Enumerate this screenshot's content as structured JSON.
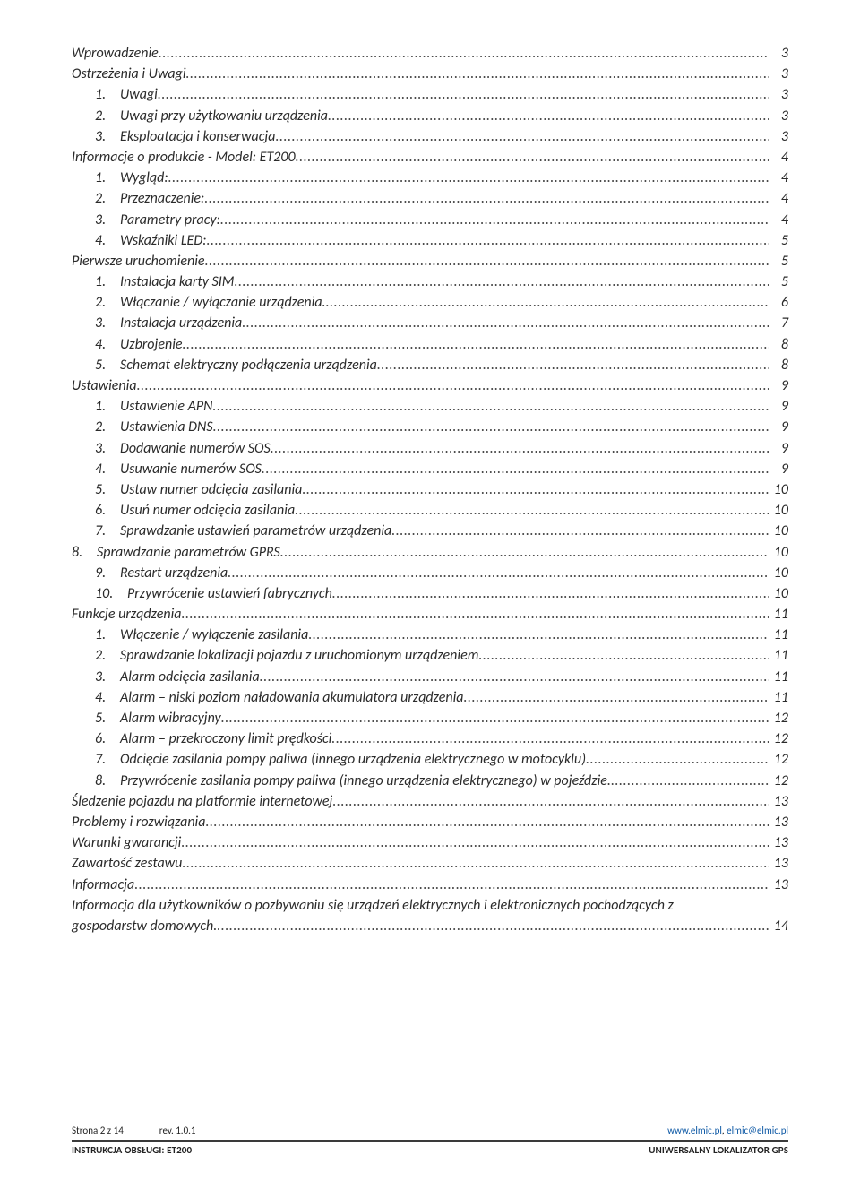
{
  "colors": {
    "text": "#2b2b2b",
    "link": "#0b57a4",
    "hr": "#3a3a3a",
    "background": "#ffffff"
  },
  "typography": {
    "body_font": "Calibri",
    "toc_fontsize_pt": 12,
    "toc_font_style": "italic",
    "footer_fontsize_pt": 8
  },
  "toc": [
    {
      "level": 0,
      "num": "",
      "title": "Wprowadzenie",
      "page": "3"
    },
    {
      "level": 0,
      "num": "",
      "title": "Ostrzeżenia i Uwagi",
      "page": "3"
    },
    {
      "level": 1,
      "num": "1.",
      "title": "Uwagi",
      "page": "3"
    },
    {
      "level": 1,
      "num": "2.",
      "title": "Uwagi przy użytkowaniu urządzenia",
      "page": "3"
    },
    {
      "level": 1,
      "num": "3.",
      "title": "Eksploatacja i konserwacja",
      "page": "3"
    },
    {
      "level": 0,
      "num": "",
      "title": "Informacje o produkcie - Model: ET200",
      "page": "4"
    },
    {
      "level": 1,
      "num": "1.",
      "title": "Wygląd:",
      "page": "4"
    },
    {
      "level": 1,
      "num": "2.",
      "title": "Przeznaczenie:",
      "page": "4"
    },
    {
      "level": 1,
      "num": "3.",
      "title": "Parametry pracy:",
      "page": "4"
    },
    {
      "level": 1,
      "num": "4.",
      "title": "Wskaźniki LED:",
      "page": "5"
    },
    {
      "level": 0,
      "num": "",
      "title": "Pierwsze uruchomienie",
      "page": "5"
    },
    {
      "level": 1,
      "num": "1.",
      "title": "Instalacja karty SIM",
      "page": "5"
    },
    {
      "level": 1,
      "num": "2.",
      "title": "Włączanie / wyłączanie urządzenia.",
      "page": "6"
    },
    {
      "level": 1,
      "num": "3.",
      "title": "Instalacja urządzenia",
      "page": "7"
    },
    {
      "level": 1,
      "num": "4.",
      "title": "Uzbrojenie",
      "page": "8"
    },
    {
      "level": 1,
      "num": "5.",
      "title": "Schemat elektryczny podłączenia urządzenia",
      "page": "8"
    },
    {
      "level": 0,
      "num": "",
      "title": "Ustawienia",
      "page": "9"
    },
    {
      "level": 1,
      "num": "1.",
      "title": "Ustawienie APN",
      "page": "9"
    },
    {
      "level": 1,
      "num": "2.",
      "title": "Ustawienia DNS",
      "page": "9"
    },
    {
      "level": 1,
      "num": "3.",
      "title": "Dodawanie numerów SOS",
      "page": "9"
    },
    {
      "level": 1,
      "num": "4.",
      "title": "Usuwanie numerów SOS",
      "page": "9"
    },
    {
      "level": 1,
      "num": "5.",
      "title": "Ustaw numer odcięcia zasilania",
      "page": "10"
    },
    {
      "level": 1,
      "num": "6.",
      "title": "Usuń numer odcięcia zasilania",
      "page": "10"
    },
    {
      "level": 1,
      "num": "7.",
      "title": "Sprawdzanie ustawień parametrów urządzenia",
      "page": "10"
    },
    {
      "level": 0,
      "num": "8.",
      "title": "Sprawdzanie parametrów GPRS",
      "page": "10"
    },
    {
      "level": 1,
      "num": "9.",
      "title": "Restart urządzenia",
      "page": "10"
    },
    {
      "level": 2,
      "num": "10.",
      "title": "Przywrócenie ustawień fabrycznych",
      "page": "10"
    },
    {
      "level": 0,
      "num": "",
      "title": "Funkcje urządzenia",
      "page": "11"
    },
    {
      "level": 1,
      "num": "1.",
      "title": "Włączenie / wyłączenie zasilania",
      "page": "11"
    },
    {
      "level": 1,
      "num": "2.",
      "title": "Sprawdzanie lokalizacji pojazdu z uruchomionym urządzeniem",
      "page": "11"
    },
    {
      "level": 1,
      "num": "3.",
      "title": "Alarm odcięcia zasilania",
      "page": "11"
    },
    {
      "level": 1,
      "num": "4.",
      "title": "Alarm – niski poziom naładowania akumulatora urządzenia",
      "page": "11"
    },
    {
      "level": 1,
      "num": "5.",
      "title": "Alarm wibracyjny",
      "page": "12"
    },
    {
      "level": 1,
      "num": "6.",
      "title": "Alarm – przekroczony limit prędkości",
      "page": "12"
    },
    {
      "level": 1,
      "num": "7.",
      "title": "Odcięcie zasilania pompy paliwa (innego urządzenia elektrycznego w motocyklu)",
      "page": "12"
    },
    {
      "level": 1,
      "num": "8.",
      "title": "Przywrócenie zasilania pompy paliwa (innego urządzenia elektrycznego) w pojeździe.",
      "page": "12"
    },
    {
      "level": 0,
      "num": "",
      "title": "Śledzenie pojazdu na platformie internetowej",
      "page": "13"
    },
    {
      "level": 0,
      "num": "",
      "title": "Problemy i rozwiązania",
      "page": "13"
    },
    {
      "level": 0,
      "num": "",
      "title": "Warunki gwarancji",
      "page": "13"
    },
    {
      "level": 0,
      "num": "",
      "title": "Zawartość zestawu",
      "page": "13"
    },
    {
      "level": 0,
      "num": "",
      "title": "Informacja",
      "page": "13"
    },
    {
      "level": 0,
      "num": "",
      "title": "Informacja dla użytkowników o pozbywaniu się urządzeń elektrycznych  i elektronicznych pochodzących z gospodarstw domowych.",
      "page": "14",
      "wrap": true
    }
  ],
  "footer": {
    "page_label": "Strona 2 z 14",
    "revision": "rev. 1.0.1",
    "site": "www.elmic.pl",
    "email": "elmic@elmic.pl",
    "doc_left": "INSTRUKCJA OBSŁUGI:   ET200",
    "doc_right": "UNIWERSALNY LOKALIZATOR GPS"
  }
}
